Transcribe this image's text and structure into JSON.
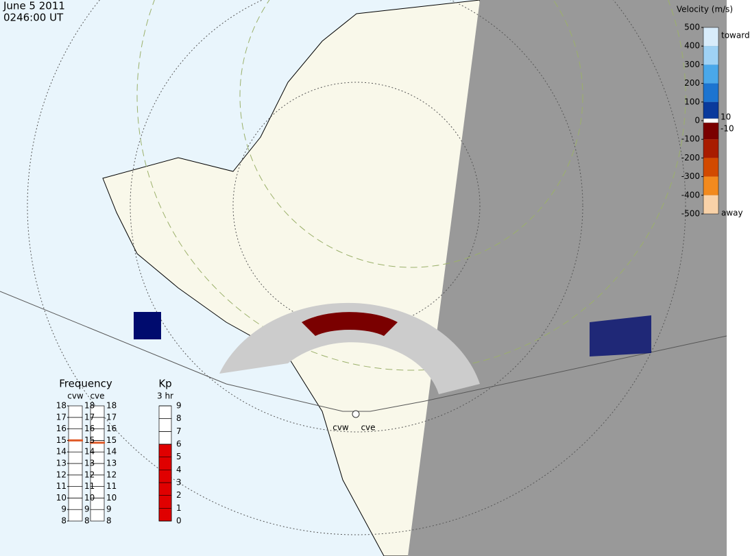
{
  "header": {
    "date": "June  5 2011",
    "time": "0246:00 UT"
  },
  "velocity_scale": {
    "title": "Velocity (m/s)",
    "lim": [
      -500,
      500
    ],
    "ticks": [
      500,
      400,
      300,
      200,
      100,
      0,
      -100,
      -200,
      -300,
      -400,
      -500
    ],
    "inner_ticks": [
      10,
      -10
    ],
    "toward": "toward",
    "away": "away",
    "colors": [
      "#d8ecfb",
      "#9fd2f5",
      "#4aa8ea",
      "#1c74d0",
      "#0a3a9c",
      "#000b6e",
      "#7a0000",
      "#a81c00",
      "#d24a00",
      "#f28a1e",
      "#f9d2a8"
    ]
  },
  "frequency": {
    "title": "Frequency",
    "radars": [
      "cvw",
      "cve"
    ],
    "lim": [
      8,
      18
    ],
    "ticks": [
      8,
      9,
      10,
      11,
      12,
      13,
      14,
      15,
      16,
      17,
      18
    ],
    "values": [
      15,
      14.8
    ],
    "color": "#e05a28"
  },
  "kp": {
    "title": "Kp",
    "subtitle": "3 hr",
    "lim": [
      0,
      9
    ],
    "ticks": [
      0,
      1,
      2,
      3,
      4,
      5,
      6,
      7,
      8,
      9
    ],
    "value": 6,
    "color": "#e00000"
  },
  "radar_labels": [
    "cvw",
    "cve"
  ]
}
